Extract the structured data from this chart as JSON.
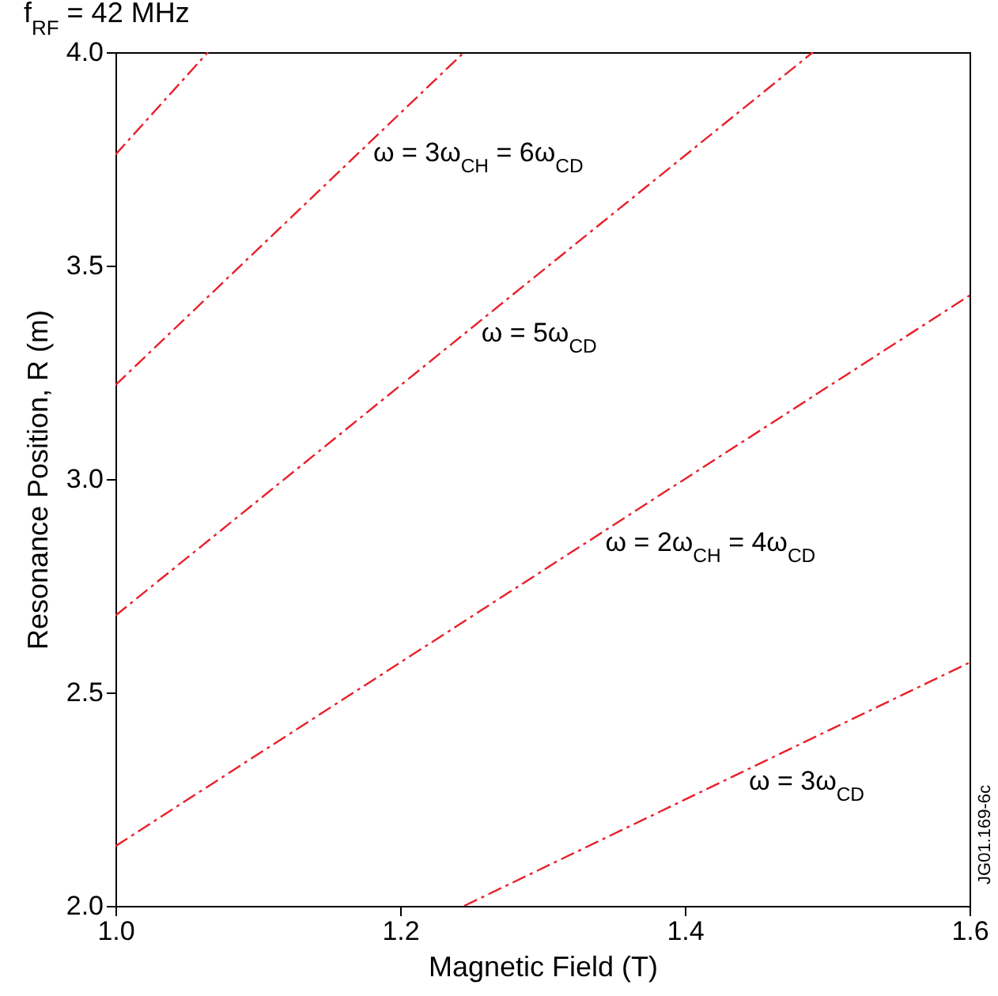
{
  "chart_data": {
    "type": "line",
    "title": "f$_{RF}$ = 42 MHz",
    "xlabel": "Magnetic Field (T)",
    "ylabel": "Resonance Position, R (m)",
    "xlim": [
      1.0,
      1.6
    ],
    "ylim": [
      2.0,
      4.0
    ],
    "xticks": [
      {
        "value": 1.0,
        "label": "1.0"
      },
      {
        "value": 1.2,
        "label": "1.2"
      },
      {
        "value": 1.4,
        "label": "1.4"
      },
      {
        "value": 1.6,
        "label": "1.6"
      }
    ],
    "yticks": [
      {
        "value": 2.0,
        "label": "2.0"
      },
      {
        "value": 2.5,
        "label": "2.5"
      },
      {
        "value": 3.0,
        "label": "3.0"
      },
      {
        "value": 3.5,
        "label": "3.5"
      },
      {
        "value": 4.0,
        "label": "4.0"
      }
    ],
    "grid": false,
    "legend": false,
    "line_style": "dashed",
    "marker": "none",
    "series": [
      {
        "name": "ω = 3ω$_{CD}$",
        "color": "#e8202a",
        "x": [
          1.245,
          1.6
        ],
        "values": [
          2.0,
          2.57
        ]
      },
      {
        "name": "ω = 2ω$_{CH}$ = 4ω$_{CD}$",
        "color": "#e8202a",
        "x": [
          1.0,
          1.6
        ],
        "values": [
          2.14,
          3.43
        ]
      },
      {
        "name": "ω = 5ω$_{CD}$",
        "color": "#e8202a",
        "x": [
          1.0,
          1.49
        ],
        "values": [
          2.68,
          4.0
        ]
      },
      {
        "name": "ω = 3ω$_{CH}$ = 6ω$_{CD}$",
        "color": "#e8202a",
        "x": [
          1.0,
          1.245
        ],
        "values": [
          3.22,
          4.0
        ]
      },
      {
        "color": "#e8202a",
        "x": [
          1.0,
          1.065
        ],
        "values": [
          3.76,
          4.0
        ]
      }
    ],
    "annotations": [
      "JG01.169-6c"
    ]
  }
}
